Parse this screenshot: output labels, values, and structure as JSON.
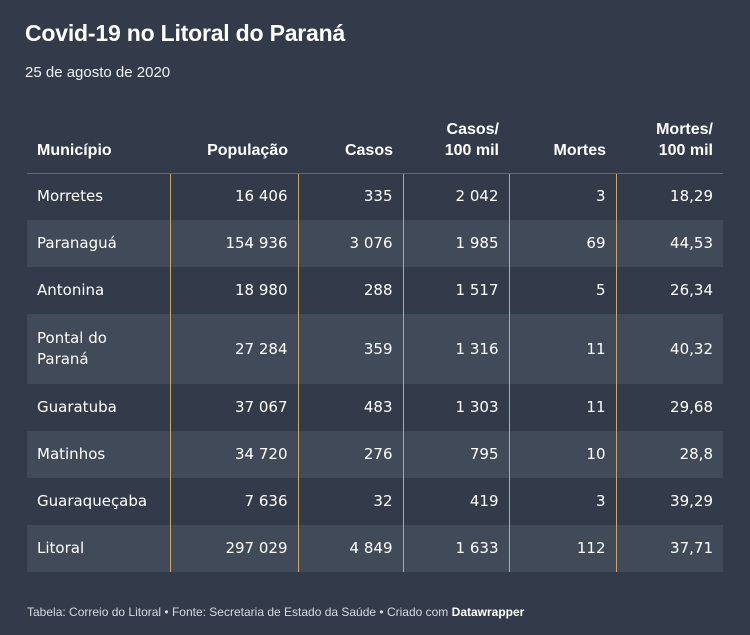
{
  "title": "Covid-19 no Litoral do Paraná",
  "subtitle": "25 de agosto de 2020",
  "chart_data": {
    "type": "table",
    "columns": [
      {
        "lines": [
          "Município"
        ]
      },
      {
        "lines": [
          "População"
        ]
      },
      {
        "lines": [
          "Casos"
        ]
      },
      {
        "lines": [
          "Casos/",
          "100 mil"
        ]
      },
      {
        "lines": [
          "Mortes"
        ]
      },
      {
        "lines": [
          "Mortes/",
          "100 mil"
        ]
      }
    ],
    "rows": [
      {
        "municipio": [
          "Morretes"
        ],
        "populacao": "16 406",
        "casos": "335",
        "casos_100mil": "2 042",
        "mortes": "3",
        "mortes_100mil": "18,29"
      },
      {
        "municipio": [
          "Paranaguá"
        ],
        "populacao": "154 936",
        "casos": "3 076",
        "casos_100mil": "1 985",
        "mortes": "69",
        "mortes_100mil": "44,53"
      },
      {
        "municipio": [
          "Antonina"
        ],
        "populacao": "18 980",
        "casos": "288",
        "casos_100mil": "1 517",
        "mortes": "5",
        "mortes_100mil": "26,34"
      },
      {
        "municipio": [
          "Pontal do",
          "Paraná"
        ],
        "populacao": "27 284",
        "casos": "359",
        "casos_100mil": "1 316",
        "mortes": "11",
        "mortes_100mil": "40,32"
      },
      {
        "municipio": [
          "Guaratuba"
        ],
        "populacao": "37 067",
        "casos": "483",
        "casos_100mil": "1 303",
        "mortes": "11",
        "mortes_100mil": "29,68"
      },
      {
        "municipio": [
          "Matinhos"
        ],
        "populacao": "34 720",
        "casos": "276",
        "casos_100mil": "795",
        "mortes": "10",
        "mortes_100mil": "28,8"
      },
      {
        "municipio": [
          "Guaraqueçaba"
        ],
        "populacao": "7 636",
        "casos": "32",
        "casos_100mil": "419",
        "mortes": "3",
        "mortes_100mil": "39,29"
      },
      {
        "municipio": [
          "Litoral"
        ],
        "populacao": "297 029",
        "casos": "4 849",
        "casos_100mil": "1 633",
        "mortes": "112",
        "mortes_100mil": "37,71"
      }
    ]
  },
  "footer": {
    "text": "Tabela: Correio do Litoral • Fonte: Secretaria de Estado da Saúde • Criado com",
    "brand": "Datawrapper"
  },
  "colors": {
    "background": "#333b4a",
    "row_alt": "#414a59",
    "separator": "#c9a95f"
  }
}
